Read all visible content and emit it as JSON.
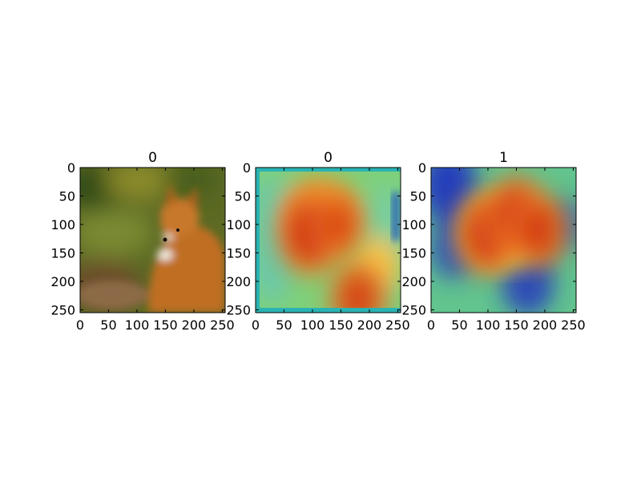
{
  "figure": {
    "background": "#ffffff"
  },
  "chart_data": [
    {
      "type": "heatmap",
      "title": "0",
      "content": "photo",
      "xlim": [
        0,
        255
      ],
      "ylim": [
        255,
        0
      ],
      "xticks": [
        0,
        50,
        100,
        150,
        200,
        250
      ],
      "yticks": [
        0,
        50,
        100,
        150,
        200,
        250
      ],
      "grid": false
    },
    {
      "type": "heatmap",
      "title": "0",
      "content": "heatmap-overlay",
      "colormap": "jet",
      "hotspots": [
        {
          "x": 95,
          "y": 115,
          "intensity": 1.0
        },
        {
          "x": 145,
          "y": 100,
          "intensity": 0.7
        },
        {
          "x": 180,
          "y": 230,
          "intensity": 0.8
        }
      ],
      "xlim": [
        0,
        255
      ],
      "ylim": [
        255,
        0
      ],
      "xticks": [
        0,
        50,
        100,
        150,
        200,
        250
      ],
      "yticks": [
        0,
        50,
        100,
        150,
        200,
        250
      ],
      "grid": false
    },
    {
      "type": "heatmap",
      "title": "1",
      "content": "heatmap-overlay",
      "colormap": "jet",
      "hotspots": [
        {
          "x": 100,
          "y": 115,
          "intensity": 1.0
        },
        {
          "x": 150,
          "y": 85,
          "intensity": 0.95
        },
        {
          "x": 190,
          "y": 110,
          "intensity": 0.85
        }
      ],
      "coldspots": [
        {
          "x": 30,
          "y": 30,
          "intensity": 1.0
        },
        {
          "x": 40,
          "y": 140,
          "intensity": 0.8
        },
        {
          "x": 170,
          "y": 200,
          "intensity": 0.9
        },
        {
          "x": 240,
          "y": 100,
          "intensity": 0.6
        }
      ],
      "xlim": [
        0,
        255
      ],
      "ylim": [
        255,
        0
      ],
      "xticks": [
        0,
        50,
        100,
        150,
        200,
        250
      ],
      "yticks": [
        0,
        50,
        100,
        150,
        200,
        250
      ],
      "grid": false
    }
  ]
}
